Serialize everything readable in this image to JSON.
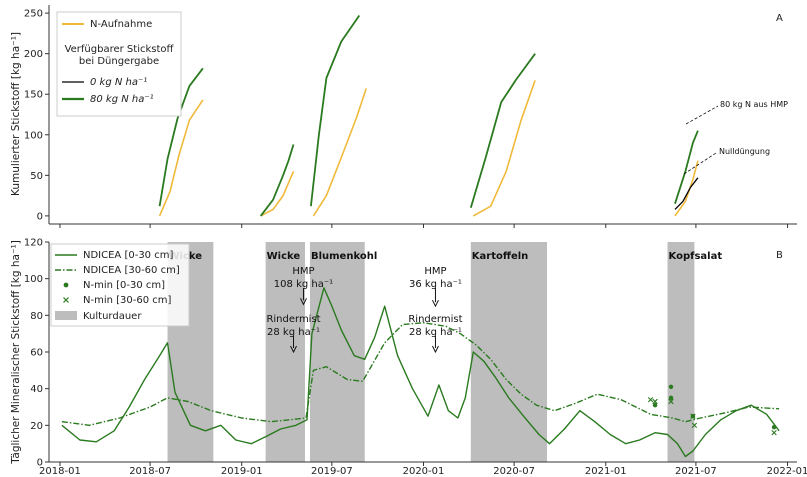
{
  "chart_data": [
    {
      "panel": "A",
      "type": "line",
      "ylabel": "Kumulierter Stickstoff [kg ha⁻¹]",
      "ylim": [
        -10,
        260
      ],
      "yticks": [
        0,
        50,
        100,
        150,
        200,
        250
      ],
      "xlim": [
        "2017-12-10",
        "2022-01-20"
      ],
      "legend": {
        "placement": "top-left",
        "entries": [
          "N-Aufnahme"
        ],
        "group_title": "Verfügbarer Stickstoff bei Düngergabe",
        "group_entries": [
          "0 kg N ha⁻¹",
          "80 kg N ha⁻¹"
        ]
      },
      "annotations": [
        "80 kg N aus HMP",
        "Nulldüngung"
      ],
      "series": [
        {
          "name": "N-Aufnahme",
          "color": "#f0b93a",
          "segments": [
            [
              [
                "2018-07-20",
                0
              ],
              [
                "2018-08-10",
                30
              ],
              [
                "2018-08-28",
                75
              ],
              [
                "2018-09-18",
                118
              ],
              [
                "2018-10-15",
                143
              ]
            ],
            [
              [
                "2019-02-08",
                0
              ],
              [
                "2019-03-05",
                8
              ],
              [
                "2019-03-25",
                25
              ],
              [
                "2019-04-15",
                55
              ]
            ],
            [
              [
                "2019-05-25",
                0
              ],
              [
                "2019-06-20",
                25
              ],
              [
                "2019-07-20",
                72
              ],
              [
                "2019-08-20",
                122
              ],
              [
                "2019-09-08",
                157
              ]
            ],
            [
              [
                "2020-04-10",
                0
              ],
              [
                "2020-05-15",
                12
              ],
              [
                "2020-06-15",
                55
              ],
              [
                "2020-07-15",
                118
              ],
              [
                "2020-08-12",
                167
              ]
            ],
            [
              [
                "2021-05-20",
                0
              ],
              [
                "2021-06-10",
                18
              ],
              [
                "2021-06-25",
                45
              ],
              [
                "2021-07-05",
                68
              ]
            ]
          ]
        },
        {
          "name": "0 kg N ha⁻¹",
          "color": "#000000",
          "segments": [
            [
              [
                "2021-05-20",
                8
              ],
              [
                "2021-06-05",
                18
              ],
              [
                "2021-06-20",
                35
              ],
              [
                "2021-07-05",
                47
              ]
            ]
          ]
        },
        {
          "name": "80 kg N ha⁻¹",
          "color": "#2a7a1f",
          "segments": [
            [
              [
                "2018-07-20",
                12
              ],
              [
                "2018-08-05",
                70
              ],
              [
                "2018-08-25",
                120
              ],
              [
                "2018-09-18",
                160
              ],
              [
                "2018-10-15",
                182
              ]
            ],
            [
              [
                "2019-02-08",
                0
              ],
              [
                "2019-03-05",
                20
              ],
              [
                "2019-03-25",
                50
              ],
              [
                "2019-04-05",
                68
              ],
              [
                "2019-04-15",
                88
              ]
            ],
            [
              [
                "2019-05-20",
                12
              ],
              [
                "2019-06-05",
                100
              ],
              [
                "2019-06-20",
                170
              ],
              [
                "2019-07-20",
                215
              ],
              [
                "2019-08-25",
                247
              ]
            ],
            [
              [
                "2020-04-05",
                10
              ],
              [
                "2020-05-05",
                72
              ],
              [
                "2020-06-05",
                140
              ],
              [
                "2020-07-05",
                168
              ],
              [
                "2020-08-12",
                200
              ]
            ],
            [
              [
                "2021-05-20",
                15
              ],
              [
                "2021-06-10",
                55
              ],
              [
                "2021-06-25",
                90
              ],
              [
                "2021-07-05",
                105
              ]
            ]
          ]
        }
      ]
    },
    {
      "panel": "B",
      "type": "line",
      "ylabel": "Täglicher Mineralischer Stickstoff [kg ha⁻¹]",
      "ylim": [
        0,
        120
      ],
      "yticks": [
        0,
        20,
        40,
        60,
        80,
        100,
        120
      ],
      "xlim": [
        "2017-12-10",
        "2022-01-20"
      ],
      "xticks": [
        "2018-01",
        "2018-07",
        "2019-01",
        "2019-07",
        "2020-01",
        "2020-07",
        "2021-01",
        "2021-07",
        "2022-01"
      ],
      "legend": {
        "placement": "top-left",
        "entries": [
          "NDICEA [0-30 cm]",
          "NDICEA [30-60 cm]",
          "N-min [0-30 cm]",
          "N-min [30-60 cm]",
          "Kulturdauer"
        ]
      },
      "kulturdauer": [
        {
          "label": "Wicke",
          "start": "2018-08-05",
          "end": "2018-11-05"
        },
        {
          "label": "Wicke",
          "start": "2019-02-18",
          "end": "2019-05-08"
        },
        {
          "label": "Blumenkohl",
          "start": "2019-05-18",
          "end": "2019-09-05"
        },
        {
          "label": "Kartoffeln",
          "start": "2020-04-05",
          "end": "2020-09-05"
        },
        {
          "label": "Kopfsalat",
          "start": "2021-05-05",
          "end": "2021-06-28"
        }
      ],
      "annotations": [
        {
          "lines": [
            "HMP",
            "108 kg ha⁻¹"
          ],
          "date": "2019-05-05",
          "arrow_to": 86
        },
        {
          "lines": [
            "Rindermist",
            "28 kg ha⁻¹"
          ],
          "date": "2019-04-15",
          "arrow_to": 60
        },
        {
          "lines": [
            "HMP",
            "36 kg ha⁻¹"
          ],
          "date": "2020-01-25",
          "arrow_to": 85
        },
        {
          "lines": [
            "Rindermist",
            "28 kg ha⁻¹"
          ],
          "date": "2020-01-25",
          "arrow_to": 60
        }
      ],
      "series": [
        {
          "name": "NDICEA [0-30 cm]",
          "color": "#2a7a1f",
          "style": "solid",
          "points": [
            [
              "2018-01-05",
              20
            ],
            [
              "2018-02-10",
              12
            ],
            [
              "2018-03-15",
              11
            ],
            [
              "2018-04-20",
              17
            ],
            [
              "2018-05-20",
              30
            ],
            [
              "2018-06-20",
              45
            ],
            [
              "2018-07-20",
              58
            ],
            [
              "2018-08-05",
              65
            ],
            [
              "2018-08-20",
              38
            ],
            [
              "2018-09-20",
              20
            ],
            [
              "2018-10-20",
              17
            ],
            [
              "2018-11-20",
              20
            ],
            [
              "2018-12-20",
              12
            ],
            [
              "2019-01-20",
              10
            ],
            [
              "2019-02-20",
              14
            ],
            [
              "2019-03-20",
              18
            ],
            [
              "2019-04-20",
              20
            ],
            [
              "2019-05-12",
              23
            ],
            [
              "2019-05-22",
              70
            ],
            [
              "2019-06-15",
              95
            ],
            [
              "2019-07-01",
              85
            ],
            [
              "2019-07-20",
              72
            ],
            [
              "2019-08-15",
              58
            ],
            [
              "2019-09-05",
              56
            ],
            [
              "2019-09-25",
              68
            ],
            [
              "2019-10-15",
              85
            ],
            [
              "2019-11-10",
              58
            ],
            [
              "2019-12-10",
              40
            ],
            [
              "2020-01-10",
              25
            ],
            [
              "2020-02-01",
              42
            ],
            [
              "2020-02-20",
              28
            ],
            [
              "2020-03-10",
              24
            ],
            [
              "2020-03-25",
              35
            ],
            [
              "2020-04-10",
              60
            ],
            [
              "2020-05-01",
              55
            ],
            [
              "2020-05-25",
              46
            ],
            [
              "2020-06-20",
              35
            ],
            [
              "2020-07-20",
              25
            ],
            [
              "2020-08-20",
              15
            ],
            [
              "2020-09-10",
              10
            ],
            [
              "2020-10-10",
              18
            ],
            [
              "2020-11-10",
              28
            ],
            [
              "2020-12-10",
              22
            ],
            [
              "2021-01-10",
              15
            ],
            [
              "2021-02-10",
              10
            ],
            [
              "2021-03-10",
              12
            ],
            [
              "2021-04-10",
              16
            ],
            [
              "2021-05-05",
              15
            ],
            [
              "2021-05-25",
              10
            ],
            [
              "2021-06-10",
              3
            ],
            [
              "2021-06-25",
              6
            ],
            [
              "2021-07-20",
              15
            ],
            [
              "2021-08-20",
              23
            ],
            [
              "2021-09-20",
              28
            ],
            [
              "2021-10-20",
              31
            ],
            [
              "2021-11-20",
              26
            ],
            [
              "2021-12-15",
              17
            ]
          ]
        },
        {
          "name": "NDICEA [30-60 cm]",
          "color": "#2a7a1f",
          "style": "dashdot",
          "points": [
            [
              "2018-01-05",
              22
            ],
            [
              "2018-03-01",
              20
            ],
            [
              "2018-05-01",
              24
            ],
            [
              "2018-07-01",
              30
            ],
            [
              "2018-08-05",
              35
            ],
            [
              "2018-09-15",
              33
            ],
            [
              "2018-11-01",
              28
            ],
            [
              "2019-01-01",
              24
            ],
            [
              "2019-03-01",
              22
            ],
            [
              "2019-05-10",
              24
            ],
            [
              "2019-05-25",
              50
            ],
            [
              "2019-06-20",
              52
            ],
            [
              "2019-08-01",
              45
            ],
            [
              "2019-09-01",
              44
            ],
            [
              "2019-10-15",
              65
            ],
            [
              "2019-11-20",
              75
            ],
            [
              "2020-01-01",
              76
            ],
            [
              "2020-02-15",
              74
            ],
            [
              "2020-03-15",
              70
            ],
            [
              "2020-04-15",
              64
            ],
            [
              "2020-05-15",
              56
            ],
            [
              "2020-06-15",
              45
            ],
            [
              "2020-07-15",
              37
            ],
            [
              "2020-08-15",
              31
            ],
            [
              "2020-09-20",
              28
            ],
            [
              "2020-11-01",
              32
            ],
            [
              "2020-12-15",
              37
            ],
            [
              "2021-02-01",
              34
            ],
            [
              "2021-04-01",
              26
            ],
            [
              "2021-05-15",
              24
            ],
            [
              "2021-06-10",
              22
            ],
            [
              "2021-07-10",
              24
            ],
            [
              "2021-09-01",
              27
            ],
            [
              "2021-10-15",
              30
            ],
            [
              "2021-12-15",
              29
            ]
          ]
        }
      ],
      "scatter": [
        {
          "name": "N-min [0-30 cm]",
          "marker": "dot",
          "color": "#2a7a1f",
          "points": [
            [
              "2021-04-10",
              31
            ],
            [
              "2021-05-12",
              41
            ],
            [
              "2021-05-12",
              35
            ],
            [
              "2021-06-25",
              25
            ],
            [
              "2021-12-05",
              19
            ]
          ]
        },
        {
          "name": "N-min [30-60 cm]",
          "marker": "x",
          "color": "#2a7a1f",
          "points": [
            [
              "2021-04-01",
              34
            ],
            [
              "2021-04-10",
              33
            ],
            [
              "2021-05-12",
              33
            ],
            [
              "2021-06-25",
              25
            ],
            [
              "2021-06-28",
              20
            ],
            [
              "2021-12-05",
              16
            ]
          ]
        }
      ]
    }
  ]
}
